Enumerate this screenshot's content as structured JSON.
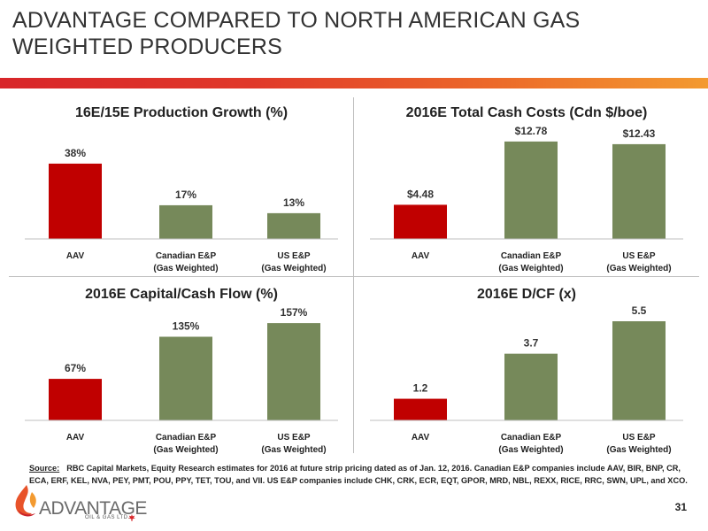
{
  "title": [
    "ADVANTAGE COMPARED TO NORTH AMERICAN GAS",
    "WEIGHTED PRODUCERS"
  ],
  "colors": {
    "highlight": "#c00000",
    "peer": "#76895a",
    "axis": "#bfbfbf"
  },
  "chart_data": [
    {
      "type": "bar",
      "title": "16E/15E Production Growth (%)",
      "categories": [
        [
          "AAV"
        ],
        [
          "Canadian E&P",
          "(Gas Weighted)"
        ],
        [
          "US E&P",
          "(Gas Weighted)"
        ]
      ],
      "values": [
        38,
        17,
        13
      ],
      "value_labels": [
        "38%",
        "17%",
        "13%"
      ],
      "ylim": [
        0,
        50
      ],
      "grid": false,
      "legend": "none"
    },
    {
      "type": "bar",
      "title": "2016E Total Cash Costs (Cdn $/boe)",
      "categories": [
        [
          "AAV"
        ],
        [
          "Canadian E&P",
          "(Gas Weighted)"
        ],
        [
          "US E&P",
          "(Gas Weighted)"
        ]
      ],
      "values": [
        4.48,
        12.78,
        12.43
      ],
      "value_labels": [
        "$4.48",
        "$12.78",
        "$12.43"
      ],
      "ylim": [
        0,
        13
      ],
      "grid": false,
      "legend": "none"
    },
    {
      "type": "bar",
      "title": "2016E Capital/Cash Flow (%)",
      "categories": [
        [
          "AAV"
        ],
        [
          "Canadian E&P",
          "(Gas Weighted)"
        ],
        [
          "US E&P",
          "(Gas Weighted)"
        ]
      ],
      "values": [
        67,
        135,
        157
      ],
      "value_labels": [
        "67%",
        "135%",
        "157%"
      ],
      "ylim": [
        0,
        160
      ],
      "grid": false,
      "legend": "none"
    },
    {
      "type": "bar",
      "title": "2016E D/CF (x)",
      "categories": [
        [
          "AAV"
        ],
        [
          "Canadian E&P",
          "(Gas Weighted)"
        ],
        [
          "US E&P",
          "(Gas Weighted)"
        ]
      ],
      "values": [
        1.2,
        3.7,
        5.5
      ],
      "value_labels": [
        "1.2",
        "3.7",
        "5.5"
      ],
      "ylim": [
        0,
        5.5
      ],
      "grid": false,
      "legend": "none"
    }
  ],
  "source": {
    "label": "Source:",
    "text": "RBC Capital Markets, Equity Research estimates for 2016 at future strip pricing dated as of Jan. 12, 2016. Canadian E&P companies include AAV, BIR, BNP, CR, ECA, ERF, KEL, NVA, PEY, PMT, POU, PPY, TET, TOU, and VII. US E&P companies include CHK, CRK, ECR, EQT, GPOR, MRD, NBL, REXX, RICE, RRC, SWN, UPL, and XCO."
  },
  "logo": {
    "word": "ADVANTAGE",
    "sub": "OIL & GAS LTD.",
    "icon": "flame-logo-icon",
    "flag": "maple-leaf-icon"
  },
  "page_number": "31"
}
